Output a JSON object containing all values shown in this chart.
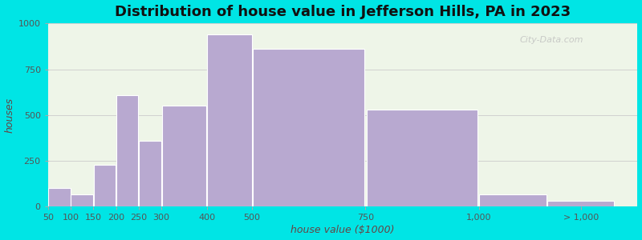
{
  "title": "Distribution of house value in Jefferson Hills, PA in 2023",
  "xlabel": "house value ($1000)",
  "ylabel": "houses",
  "bin_edges": [
    50,
    100,
    150,
    200,
    250,
    300,
    400,
    500,
    750,
    1000,
    1150,
    1300
  ],
  "bar_heights": [
    100,
    65,
    230,
    610,
    360,
    550,
    940,
    860,
    530,
    65,
    30
  ],
  "xtick_positions": [
    50,
    100,
    150,
    200,
    250,
    300,
    400,
    500,
    750,
    1000,
    1225
  ],
  "xtick_labels": [
    "50",
    "100",
    "150",
    "200",
    "250",
    "300",
    "400",
    "500",
    "750",
    "1,000",
    "> 1,000"
  ],
  "bar_color": "#b8a9d0",
  "bar_edge_color": "#ffffff",
  "ylim": [
    0,
    1000
  ],
  "yticks": [
    0,
    250,
    500,
    750,
    1000
  ],
  "xlim": [
    50,
    1350
  ],
  "background_outer": "#00e5e5",
  "background_inner": "#eef5e8",
  "title_fontsize": 13,
  "axis_label_fontsize": 9,
  "watermark_text": "City-Data.com"
}
